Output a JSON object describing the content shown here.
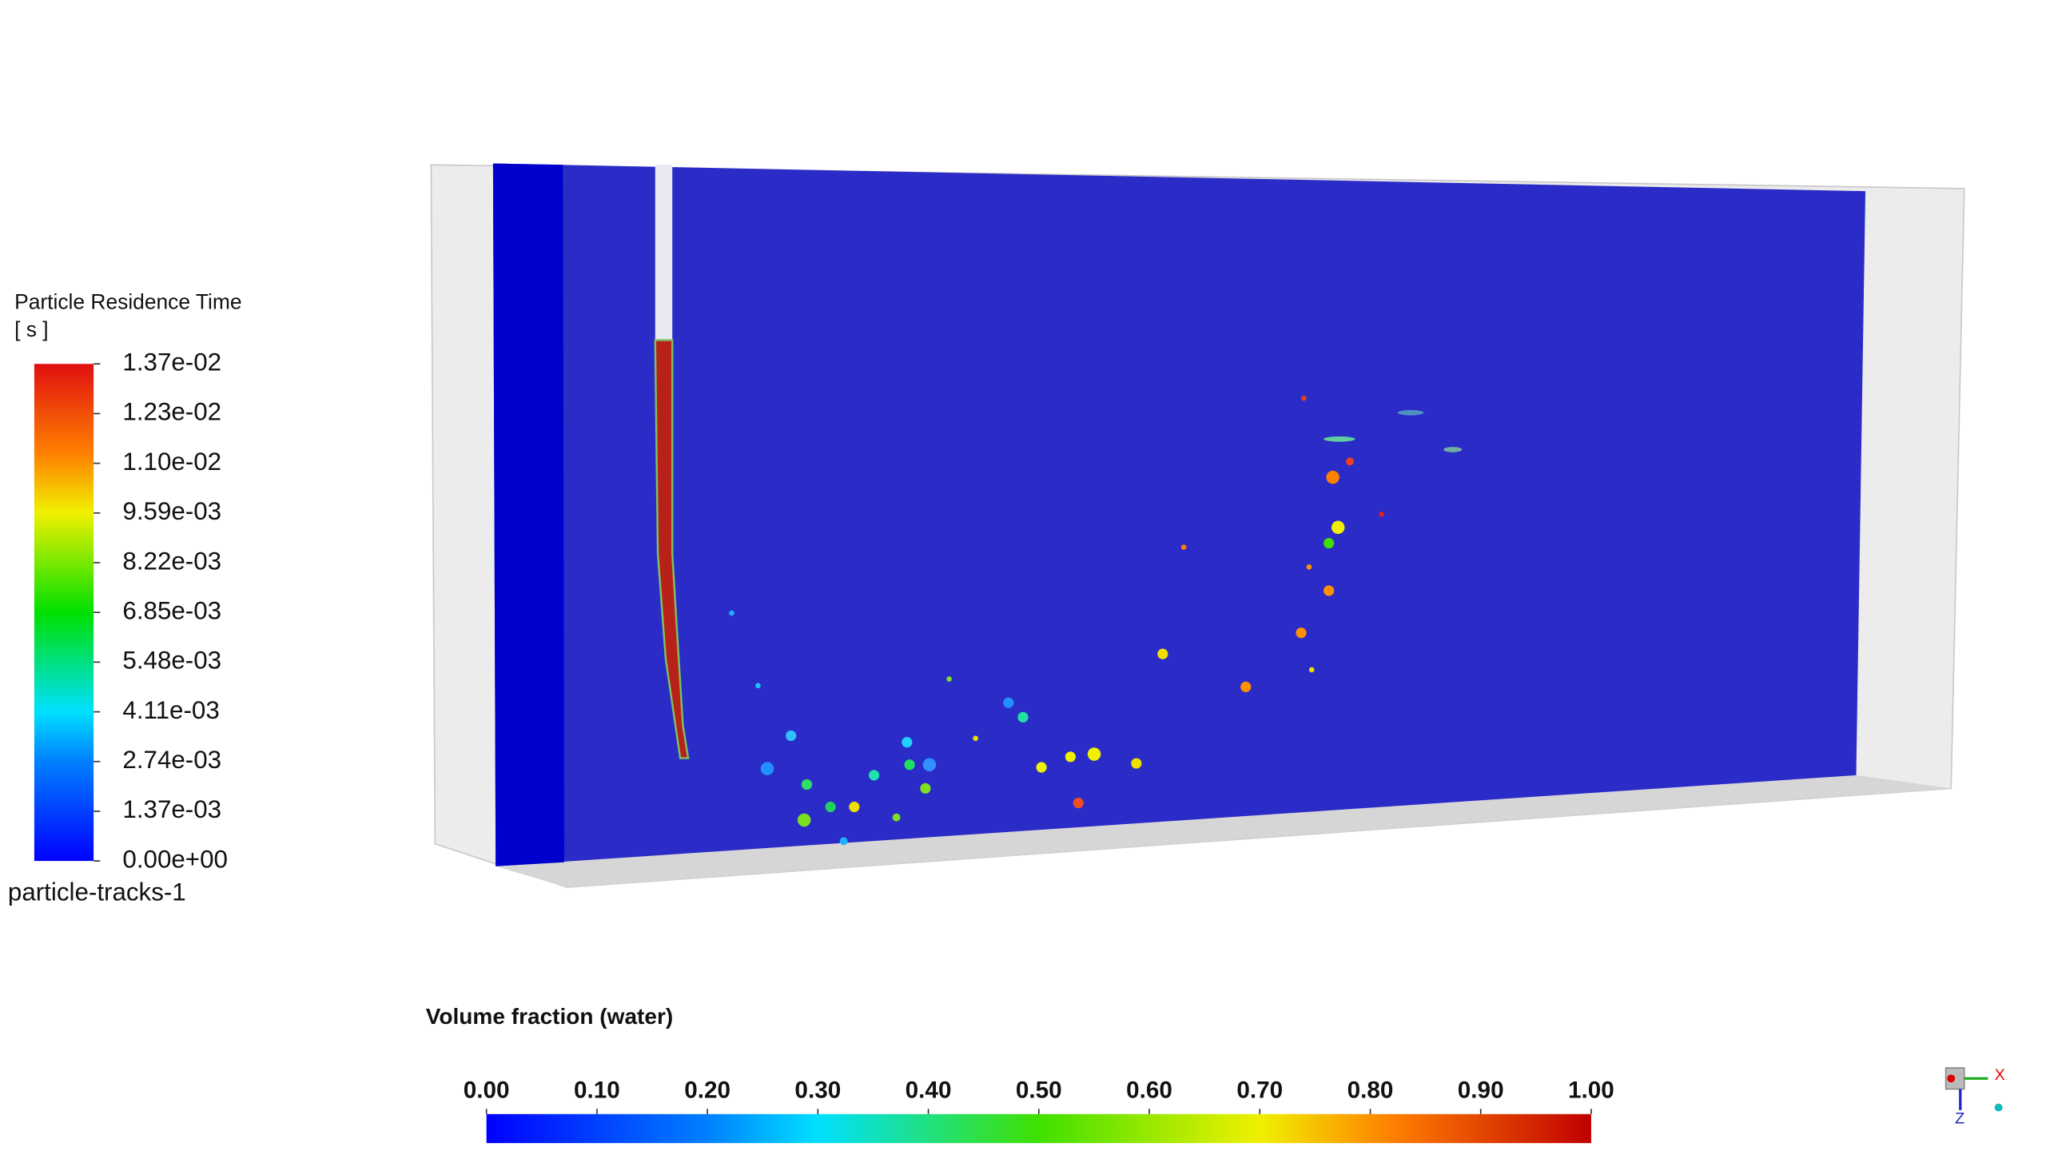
{
  "residence_legend": {
    "title": "Particle Residence Time",
    "unit": "[ s ]",
    "ticks": [
      "1.37e-02",
      "1.23e-02",
      "1.10e-02",
      "9.59e-03",
      "8.22e-03",
      "6.85e-03",
      "5.48e-03",
      "4.11e-03",
      "2.74e-03",
      "1.37e-03",
      "0.00e+00"
    ],
    "name": "particle-tracks-1"
  },
  "volume_legend": {
    "title": "Volume fraction (water)",
    "ticks": [
      "0.00",
      "0.10",
      "0.20",
      "0.30",
      "0.40",
      "0.50",
      "0.60",
      "0.70",
      "0.80",
      "0.90",
      "1.00"
    ]
  },
  "axis_triad": {
    "x": "X",
    "z": "Z"
  }
}
